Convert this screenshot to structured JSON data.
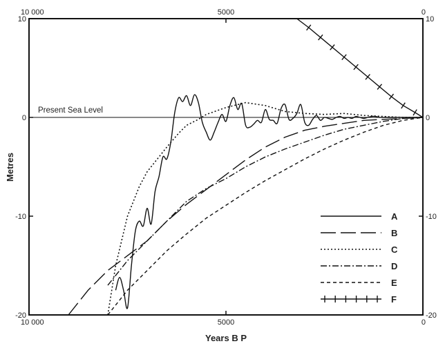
{
  "chart_data": {
    "type": "line",
    "title": "",
    "xlabel": "Years B P",
    "ylabel": "Metres",
    "xlim": [
      10000,
      0
    ],
    "ylim": [
      -20,
      10
    ],
    "grid": false,
    "legend_position": "bottom-right",
    "x_ticks": [
      {
        "value": 10000,
        "label": "10 000"
      },
      {
        "value": 5000,
        "label": "5000"
      },
      {
        "value": 0,
        "label": "0"
      }
    ],
    "y_ticks": [
      {
        "value": 10,
        "label": "10"
      },
      {
        "value": 0,
        "label": "0"
      },
      {
        "value": -10,
        "label": "-10"
      },
      {
        "value": -20,
        "label": "-20"
      }
    ],
    "annotation": "Present Sea Level",
    "series": [
      {
        "name": "A",
        "style": "solid",
        "x": [
          7800,
          7700,
          7600,
          7500,
          7400,
          7300,
          7200,
          7100,
          7000,
          6900,
          6800,
          6700,
          6600,
          6500,
          6400,
          6300,
          6200,
          6100,
          6000,
          5900,
          5800,
          5700,
          5600,
          5500,
          5400,
          5300,
          5200,
          5100,
          5000,
          4900,
          4800,
          4700,
          4600,
          4500,
          4400,
          4300,
          4200,
          4100,
          4000,
          3900,
          3800,
          3700,
          3600,
          3500,
          3400,
          3300,
          3200,
          3100,
          3000,
          2900,
          2800,
          2700,
          2600,
          2500,
          2400,
          2300,
          2200,
          2100,
          2000,
          1900,
          1800,
          1700,
          1600,
          1500,
          1400,
          1300,
          1200,
          1100,
          1000,
          900,
          800,
          700,
          600,
          500,
          400,
          300,
          200,
          100,
          0
        ],
        "y": [
          -17.5,
          -16.2,
          -17.5,
          -19.3,
          -15,
          -11.5,
          -10.5,
          -11,
          -9.2,
          -10.8,
          -7.5,
          -6,
          -4,
          -4.2,
          -2.5,
          0.5,
          2,
          1.6,
          2.2,
          1.2,
          2.3,
          1.5,
          -0.5,
          -1.5,
          -2.3,
          -1.5,
          -0.5,
          0.3,
          -0.4,
          1.2,
          2,
          0.8,
          1.4,
          -0.8,
          -1,
          -0.7,
          -0.3,
          -0.5,
          0.8,
          -0.2,
          -0.3,
          -0.6,
          0.9,
          1.3,
          -0.2,
          -0.1,
          0.4,
          1.3,
          -0.5,
          -0.8,
          -0.2,
          0.2,
          -0.3,
          0,
          -0.1,
          -0.2,
          0,
          0.1,
          -0.1,
          0,
          -0.1,
          0.1,
          0,
          -0.1,
          0,
          0.1,
          0.1,
          0,
          0,
          0,
          0,
          0,
          0,
          0,
          0,
          0,
          0,
          0,
          0
        ]
      },
      {
        "name": "B",
        "style": "long-dash",
        "x": [
          9000,
          8500,
          8000,
          7500,
          7000,
          6500,
          6000,
          5500,
          5000,
          4500,
          4000,
          3500,
          3000,
          2500,
          2000,
          1500,
          1000,
          500,
          0
        ],
        "y": [
          -20,
          -17.5,
          -15.5,
          -14,
          -12.5,
          -10.5,
          -8.8,
          -7.3,
          -5.8,
          -4.3,
          -3,
          -2,
          -1.3,
          -0.9,
          -0.6,
          -0.3,
          -0.2,
          -0.1,
          0
        ]
      },
      {
        "name": "C",
        "style": "dotted",
        "x": [
          8000,
          7800,
          7500,
          7200,
          7000,
          6700,
          6500,
          6200,
          6000,
          5700,
          5500,
          5000,
          4500,
          4000,
          3500,
          3000,
          2500,
          2000,
          1500,
          1000,
          500,
          0
        ],
        "y": [
          -20,
          -15,
          -10,
          -7,
          -5.5,
          -4,
          -3,
          -1.6,
          -0.8,
          -0.2,
          0.3,
          1,
          1.5,
          1.2,
          0.6,
          0.4,
          0.3,
          0.4,
          0.2,
          0.1,
          0,
          0
        ]
      },
      {
        "name": "D",
        "style": "dash-dot",
        "x": [
          8000,
          7500,
          7000,
          6500,
          6000,
          5500,
          5000,
          4500,
          4000,
          3500,
          3000,
          2500,
          2000,
          1500,
          1000,
          500,
          0
        ],
        "y": [
          -17,
          -14.5,
          -12.5,
          -10.5,
          -8.5,
          -7.2,
          -6.2,
          -5,
          -4,
          -3.2,
          -2.5,
          -1.8,
          -1.2,
          -0.8,
          -0.4,
          -0.1,
          0
        ]
      },
      {
        "name": "E",
        "style": "short-dash",
        "x": [
          8000,
          7500,
          7000,
          6500,
          6000,
          5500,
          5000,
          4500,
          4000,
          3500,
          3000,
          2500,
          2000,
          1500,
          1000,
          500,
          0
        ],
        "y": [
          -20,
          -17.5,
          -15.5,
          -13.5,
          -11.8,
          -10.2,
          -8.9,
          -7.6,
          -6.4,
          -5.3,
          -4.2,
          -3.2,
          -2.3,
          -1.5,
          -0.8,
          -0.3,
          0
        ]
      },
      {
        "name": "F",
        "style": "solid-with-ticks",
        "x": [
          3200,
          2900,
          2600,
          2300,
          2000,
          1700,
          1400,
          1100,
          800,
          500,
          200,
          0
        ],
        "y": [
          10,
          9.1,
          8.1,
          7.1,
          6.1,
          5.1,
          4.1,
          3.1,
          2.1,
          1.2,
          0.5,
          0
        ]
      }
    ]
  }
}
